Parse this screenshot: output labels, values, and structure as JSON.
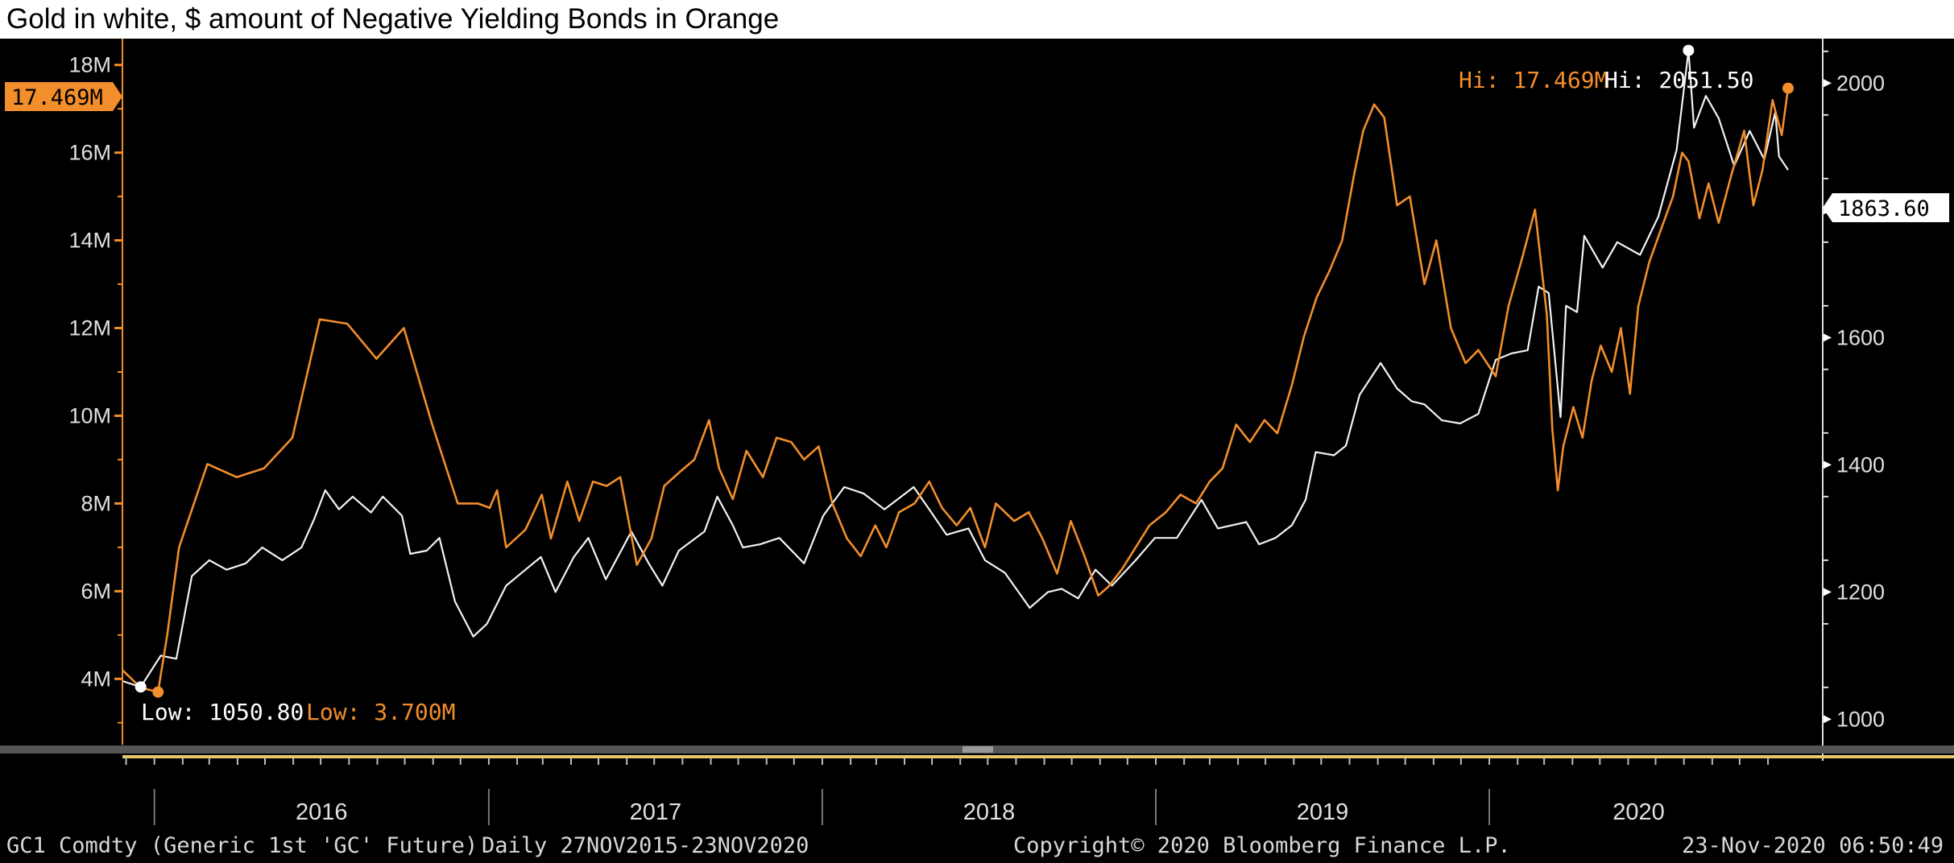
{
  "caption": "Gold in white, $ amount of Negative Yielding Bonds in Orange",
  "colors": {
    "background": "#000000",
    "gold_series": "#f2f2f2",
    "bonds_series": "#f28e2b",
    "axis_text": "#e0e0e0",
    "separator": "#555555",
    "scroll_track": "#e8c76a"
  },
  "footer": {
    "ticker": "GC1 Comdty (Generic 1st 'GC' Future)",
    "range": "Daily 27NOV2015-23NOV2020",
    "copyright": "Copyright© 2020 Bloomberg Finance L.P.",
    "timestamp": "23-Nov-2020 06:50:49"
  },
  "chart_data": {
    "type": "line",
    "title": "Gold in white, $ amount of Negative Yielding Bonds in Orange",
    "x_range": [
      "2015-11-27",
      "2020-11-23"
    ],
    "x_years": [
      "2016",
      "2017",
      "2018",
      "2019",
      "2020"
    ],
    "left_axis": {
      "series": "bonds",
      "ylim": [
        2.5,
        18.6
      ],
      "ticks": [
        4,
        6,
        8,
        10,
        12,
        14,
        16,
        18
      ],
      "tick_labels": [
        "4M",
        "6M",
        "8M",
        "10M",
        "12M",
        "14M",
        "16M",
        "18M"
      ],
      "last_value_label": "17.469M",
      "last_value": 17.469
    },
    "right_axis": {
      "series": "gold",
      "ylim": [
        960,
        2070
      ],
      "ticks": [
        1000,
        1200,
        1400,
        1600,
        1800,
        2000
      ],
      "tick_labels": [
        "1000",
        "1200",
        "1400",
        "1600",
        "1800",
        "2000"
      ],
      "last_value_label": "1863.60",
      "last_value": 1863.6
    },
    "annotations": {
      "bonds_high": "Hi: 17.469M",
      "gold_high": "Hi: 2051.50",
      "gold_low": "Low: 1050.80",
      "bonds_low": "Low: 3.700M"
    },
    "series": [
      {
        "name": "Gold",
        "axis": "right",
        "color": "#f2f2f2",
        "points": [
          [
            "2015-11-27",
            1060
          ],
          [
            "2015-12-17",
            1050.8
          ],
          [
            "2016-01-08",
            1100
          ],
          [
            "2016-01-25",
            1095
          ],
          [
            "2016-02-11",
            1225
          ],
          [
            "2016-03-01",
            1250
          ],
          [
            "2016-03-20",
            1235
          ],
          [
            "2016-04-10",
            1245
          ],
          [
            "2016-04-28",
            1270
          ],
          [
            "2016-05-20",
            1250
          ],
          [
            "2016-06-10",
            1270
          ],
          [
            "2016-06-24",
            1315
          ],
          [
            "2016-07-06",
            1360
          ],
          [
            "2016-07-21",
            1330
          ],
          [
            "2016-08-05",
            1350
          ],
          [
            "2016-08-25",
            1325
          ],
          [
            "2016-09-07",
            1350
          ],
          [
            "2016-09-28",
            1320
          ],
          [
            "2016-10-07",
            1260
          ],
          [
            "2016-10-25",
            1265
          ],
          [
            "2016-11-08",
            1285
          ],
          [
            "2016-11-25",
            1185
          ],
          [
            "2016-12-15",
            1130
          ],
          [
            "2016-12-30",
            1150
          ],
          [
            "2017-01-20",
            1210
          ],
          [
            "2017-02-10",
            1235
          ],
          [
            "2017-02-27",
            1255
          ],
          [
            "2017-03-15",
            1200
          ],
          [
            "2017-04-04",
            1255
          ],
          [
            "2017-04-20",
            1285
          ],
          [
            "2017-05-09",
            1220
          ],
          [
            "2017-06-06",
            1295
          ],
          [
            "2017-06-25",
            1245
          ],
          [
            "2017-07-10",
            1210
          ],
          [
            "2017-07-28",
            1265
          ],
          [
            "2017-08-25",
            1295
          ],
          [
            "2017-09-08",
            1350
          ],
          [
            "2017-09-25",
            1305
          ],
          [
            "2017-10-06",
            1270
          ],
          [
            "2017-10-25",
            1275
          ],
          [
            "2017-11-15",
            1285
          ],
          [
            "2017-12-12",
            1245
          ],
          [
            "2018-01-02",
            1320
          ],
          [
            "2018-01-25",
            1365
          ],
          [
            "2018-02-15",
            1355
          ],
          [
            "2018-03-10",
            1330
          ],
          [
            "2018-04-11",
            1365
          ],
          [
            "2018-04-28",
            1330
          ],
          [
            "2018-05-17",
            1290
          ],
          [
            "2018-06-10",
            1300
          ],
          [
            "2018-06-28",
            1250
          ],
          [
            "2018-07-20",
            1230
          ],
          [
            "2018-08-16",
            1175
          ],
          [
            "2018-09-05",
            1200
          ],
          [
            "2018-09-20",
            1205
          ],
          [
            "2018-10-08",
            1190
          ],
          [
            "2018-10-27",
            1235
          ],
          [
            "2018-11-14",
            1210
          ],
          [
            "2018-12-10",
            1250
          ],
          [
            "2018-12-31",
            1285
          ],
          [
            "2019-01-24",
            1285
          ],
          [
            "2019-02-20",
            1345
          ],
          [
            "2019-03-10",
            1300
          ],
          [
            "2019-04-10",
            1310
          ],
          [
            "2019-04-24",
            1275
          ],
          [
            "2019-05-12",
            1285
          ],
          [
            "2019-05-30",
            1305
          ],
          [
            "2019-06-14",
            1345
          ],
          [
            "2019-06-25",
            1420
          ],
          [
            "2019-07-15",
            1415
          ],
          [
            "2019-07-28",
            1430
          ],
          [
            "2019-08-12",
            1510
          ],
          [
            "2019-09-04",
            1560
          ],
          [
            "2019-09-22",
            1520
          ],
          [
            "2019-10-08",
            1500
          ],
          [
            "2019-10-22",
            1495
          ],
          [
            "2019-11-10",
            1470
          ],
          [
            "2019-11-30",
            1465
          ],
          [
            "2019-12-20",
            1480
          ],
          [
            "2020-01-08",
            1565
          ],
          [
            "2020-01-25",
            1575
          ],
          [
            "2020-02-12",
            1580
          ],
          [
            "2020-02-24",
            1680
          ],
          [
            "2020-03-06",
            1670
          ],
          [
            "2020-03-12",
            1580
          ],
          [
            "2020-03-19",
            1475
          ],
          [
            "2020-03-25",
            1650
          ],
          [
            "2020-04-06",
            1640
          ],
          [
            "2020-04-14",
            1760
          ],
          [
            "2020-05-04",
            1710
          ],
          [
            "2020-05-20",
            1750
          ],
          [
            "2020-06-14",
            1730
          ],
          [
            "2020-07-04",
            1790
          ],
          [
            "2020-07-24",
            1895
          ],
          [
            "2020-08-06",
            2051.5
          ],
          [
            "2020-08-12",
            1930
          ],
          [
            "2020-08-25",
            1980
          ],
          [
            "2020-09-08",
            1945
          ],
          [
            "2020-09-25",
            1870
          ],
          [
            "2020-10-12",
            1925
          ],
          [
            "2020-10-28",
            1880
          ],
          [
            "2020-11-09",
            1955
          ],
          [
            "2020-11-13",
            1885
          ],
          [
            "2020-11-23",
            1863.6
          ]
        ]
      },
      {
        "name": "Negative Yielding Bonds",
        "axis": "left",
        "color": "#f28e2b",
        "points": [
          [
            "2015-11-27",
            4.2
          ],
          [
            "2015-12-17",
            3.8
          ],
          [
            "2016-01-05",
            3.7
          ],
          [
            "2016-01-15",
            5.0
          ],
          [
            "2016-01-28",
            7.0
          ],
          [
            "2016-02-28",
            8.9
          ],
          [
            "2016-03-31",
            8.6
          ],
          [
            "2016-04-30",
            8.8
          ],
          [
            "2016-05-31",
            9.5
          ],
          [
            "2016-06-30",
            12.2
          ],
          [
            "2016-07-30",
            12.1
          ],
          [
            "2016-08-31",
            11.3
          ],
          [
            "2016-09-30",
            12.0
          ],
          [
            "2016-10-31",
            9.8
          ],
          [
            "2016-11-28",
            8.0
          ],
          [
            "2016-12-20",
            8.0
          ],
          [
            "2017-01-02",
            7.9
          ],
          [
            "2017-01-10",
            8.3
          ],
          [
            "2017-01-20",
            7.0
          ],
          [
            "2017-02-10",
            7.4
          ],
          [
            "2017-02-28",
            8.2
          ],
          [
            "2017-03-10",
            7.2
          ],
          [
            "2017-03-28",
            8.5
          ],
          [
            "2017-04-10",
            7.6
          ],
          [
            "2017-04-25",
            8.5
          ],
          [
            "2017-05-10",
            8.4
          ],
          [
            "2017-05-25",
            8.6
          ],
          [
            "2017-06-12",
            6.6
          ],
          [
            "2017-06-28",
            7.2
          ],
          [
            "2017-07-12",
            8.4
          ],
          [
            "2017-07-28",
            8.7
          ],
          [
            "2017-08-14",
            9.0
          ],
          [
            "2017-08-30",
            9.9
          ],
          [
            "2017-09-10",
            8.8
          ],
          [
            "2017-09-25",
            8.1
          ],
          [
            "2017-10-10",
            9.2
          ],
          [
            "2017-10-28",
            8.6
          ],
          [
            "2017-11-12",
            9.5
          ],
          [
            "2017-11-28",
            9.4
          ],
          [
            "2017-12-12",
            9.0
          ],
          [
            "2017-12-28",
            9.3
          ],
          [
            "2018-01-12",
            8.0
          ],
          [
            "2018-01-28",
            7.2
          ],
          [
            "2018-02-12",
            6.8
          ],
          [
            "2018-02-28",
            7.5
          ],
          [
            "2018-03-12",
            7.0
          ],
          [
            "2018-03-26",
            7.8
          ],
          [
            "2018-04-12",
            8.0
          ],
          [
            "2018-04-28",
            8.5
          ],
          [
            "2018-05-12",
            7.9
          ],
          [
            "2018-05-28",
            7.5
          ],
          [
            "2018-06-12",
            7.9
          ],
          [
            "2018-06-28",
            7.0
          ],
          [
            "2018-07-10",
            8.0
          ],
          [
            "2018-07-30",
            7.6
          ],
          [
            "2018-08-15",
            7.8
          ],
          [
            "2018-08-30",
            7.2
          ],
          [
            "2018-09-15",
            6.4
          ],
          [
            "2018-09-30",
            7.6
          ],
          [
            "2018-10-15",
            6.8
          ],
          [
            "2018-10-30",
            5.9
          ],
          [
            "2018-11-10",
            6.1
          ],
          [
            "2018-11-25",
            6.5
          ],
          [
            "2018-12-10",
            7.0
          ],
          [
            "2018-12-25",
            7.5
          ],
          [
            "2019-01-12",
            7.8
          ],
          [
            "2019-01-28",
            8.2
          ],
          [
            "2019-02-14",
            8.0
          ],
          [
            "2019-03-01",
            8.5
          ],
          [
            "2019-03-15",
            8.8
          ],
          [
            "2019-03-30",
            9.8
          ],
          [
            "2019-04-14",
            9.4
          ],
          [
            "2019-04-30",
            9.9
          ],
          [
            "2019-05-14",
            9.6
          ],
          [
            "2019-05-30",
            10.7
          ],
          [
            "2019-06-12",
            11.8
          ],
          [
            "2019-06-26",
            12.7
          ],
          [
            "2019-07-10",
            13.3
          ],
          [
            "2019-07-24",
            14.0
          ],
          [
            "2019-08-06",
            15.5
          ],
          [
            "2019-08-16",
            16.5
          ],
          [
            "2019-08-28",
            17.1
          ],
          [
            "2019-09-08",
            16.8
          ],
          [
            "2019-09-22",
            14.8
          ],
          [
            "2019-10-06",
            15.0
          ],
          [
            "2019-10-22",
            13.0
          ],
          [
            "2019-11-04",
            14.0
          ],
          [
            "2019-11-20",
            12.0
          ],
          [
            "2019-12-06",
            11.2
          ],
          [
            "2019-12-20",
            11.5
          ],
          [
            "2020-01-08",
            10.9
          ],
          [
            "2020-01-22",
            12.5
          ],
          [
            "2020-02-06",
            13.6
          ],
          [
            "2020-02-20",
            14.7
          ],
          [
            "2020-03-04",
            12.3
          ],
          [
            "2020-03-10",
            9.7
          ],
          [
            "2020-03-16",
            8.3
          ],
          [
            "2020-03-22",
            9.3
          ],
          [
            "2020-04-02",
            10.2
          ],
          [
            "2020-04-12",
            9.5
          ],
          [
            "2020-04-22",
            10.8
          ],
          [
            "2020-05-02",
            11.6
          ],
          [
            "2020-05-14",
            11.0
          ],
          [
            "2020-05-24",
            12.0
          ],
          [
            "2020-06-03",
            10.5
          ],
          [
            "2020-06-12",
            12.5
          ],
          [
            "2020-06-24",
            13.5
          ],
          [
            "2020-07-06",
            14.2
          ],
          [
            "2020-07-20",
            15.0
          ],
          [
            "2020-07-30",
            16.0
          ],
          [
            "2020-08-06",
            15.8
          ],
          [
            "2020-08-18",
            14.5
          ],
          [
            "2020-08-28",
            15.3
          ],
          [
            "2020-09-08",
            14.4
          ],
          [
            "2020-09-22",
            15.5
          ],
          [
            "2020-10-06",
            16.5
          ],
          [
            "2020-10-16",
            14.8
          ],
          [
            "2020-10-26",
            15.6
          ],
          [
            "2020-11-06",
            17.2
          ],
          [
            "2020-11-16",
            16.4
          ],
          [
            "2020-11-23",
            17.469
          ]
        ]
      }
    ]
  }
}
